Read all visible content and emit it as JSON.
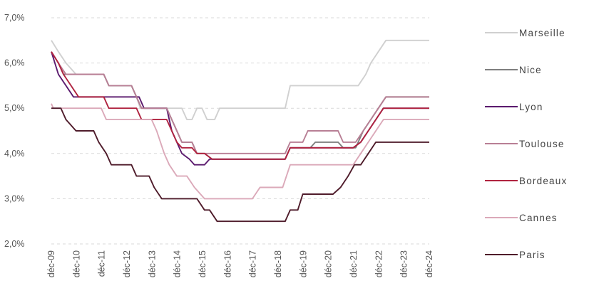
{
  "chart_data": {
    "type": "line",
    "title": "",
    "xlabel": "",
    "ylabel": "",
    "ylim": [
      2.0,
      7.0
    ],
    "y_ticks": [
      "2,0%",
      "3,0%",
      "4,0%",
      "5,0%",
      "6,0%",
      "7,0%"
    ],
    "x_range": [
      2009.92,
      2024.92
    ],
    "x_ticks": [
      "déc-09",
      "déc-10",
      "déc-11",
      "déc-12",
      "déc-13",
      "déc-14",
      "déc-15",
      "déc-16",
      "déc-17",
      "déc-18",
      "déc-19",
      "déc-20",
      "déc-21",
      "déc-22",
      "déc-23",
      "déc-24"
    ],
    "grid": "horizontal dashed",
    "legend_position": "right",
    "series": [
      {
        "name": "Marseille",
        "color": "#d0d0d0",
        "points": [
          [
            2009.92,
            6.5
          ],
          [
            2010.2,
            6.25
          ],
          [
            2010.5,
            6.0
          ],
          [
            2010.9,
            5.75
          ],
          [
            2012.0,
            5.75
          ],
          [
            2012.2,
            5.5
          ],
          [
            2013.1,
            5.5
          ],
          [
            2013.3,
            5.25
          ],
          [
            2013.45,
            5.0
          ],
          [
            2015.1,
            5.0
          ],
          [
            2015.3,
            4.75
          ],
          [
            2015.5,
            4.75
          ],
          [
            2015.7,
            5.0
          ],
          [
            2015.9,
            5.0
          ],
          [
            2016.1,
            4.75
          ],
          [
            2016.4,
            4.75
          ],
          [
            2016.6,
            5.0
          ],
          [
            2019.2,
            5.0
          ],
          [
            2019.4,
            5.5
          ],
          [
            2022.1,
            5.5
          ],
          [
            2022.4,
            5.75
          ],
          [
            2022.6,
            6.0
          ],
          [
            2022.9,
            6.25
          ],
          [
            2023.2,
            6.5
          ],
          [
            2024.92,
            6.5
          ]
        ]
      },
      {
        "name": "Nice",
        "color": "#7f7f7f",
        "points": [
          [
            2009.92,
            6.25
          ],
          [
            2010.2,
            6.0
          ],
          [
            2010.4,
            5.75
          ],
          [
            2010.9,
            5.75
          ],
          [
            2012.0,
            5.75
          ],
          [
            2012.2,
            5.5
          ],
          [
            2013.1,
            5.5
          ],
          [
            2013.3,
            5.25
          ],
          [
            2013.5,
            5.0
          ],
          [
            2014.5,
            5.0
          ],
          [
            2014.7,
            4.75
          ],
          [
            2014.9,
            4.5
          ],
          [
            2015.1,
            4.25
          ],
          [
            2015.5,
            4.25
          ],
          [
            2015.7,
            4.0
          ],
          [
            2016.0,
            4.0
          ],
          [
            2016.3,
            3.875
          ],
          [
            2019.2,
            3.875
          ],
          [
            2019.4,
            4.125
          ],
          [
            2020.2,
            4.125
          ],
          [
            2020.4,
            4.25
          ],
          [
            2021.3,
            4.25
          ],
          [
            2021.5,
            4.125
          ],
          [
            2022.0,
            4.125
          ],
          [
            2022.3,
            4.5
          ],
          [
            2022.6,
            4.75
          ],
          [
            2022.9,
            5.0
          ],
          [
            2023.2,
            5.25
          ],
          [
            2024.92,
            5.25
          ]
        ]
      },
      {
        "name": "Lyon",
        "color": "#5b1a6e",
        "points": [
          [
            2009.92,
            6.25
          ],
          [
            2010.2,
            5.75
          ],
          [
            2010.5,
            5.5
          ],
          [
            2010.8,
            5.25
          ],
          [
            2013.4,
            5.25
          ],
          [
            2013.6,
            5.0
          ],
          [
            2014.5,
            5.0
          ],
          [
            2014.7,
            4.5
          ],
          [
            2014.9,
            4.25
          ],
          [
            2015.1,
            4.0
          ],
          [
            2015.4,
            3.875
          ],
          [
            2015.6,
            3.75
          ],
          [
            2016.0,
            3.75
          ],
          [
            2016.2,
            3.875
          ],
          [
            2019.2,
            3.875
          ],
          [
            2019.4,
            4.125
          ],
          [
            2021.9,
            4.125
          ],
          [
            2022.2,
            4.25
          ],
          [
            2022.5,
            4.5
          ],
          [
            2022.8,
            4.75
          ],
          [
            2023.1,
            5.0
          ],
          [
            2024.92,
            5.0
          ]
        ]
      },
      {
        "name": "Toulouse",
        "color": "#b87f95",
        "points": [
          [
            2009.92,
            6.25
          ],
          [
            2010.2,
            6.0
          ],
          [
            2010.5,
            5.75
          ],
          [
            2010.9,
            5.75
          ],
          [
            2012.0,
            5.75
          ],
          [
            2012.2,
            5.5
          ],
          [
            2013.1,
            5.5
          ],
          [
            2013.3,
            5.25
          ],
          [
            2013.5,
            5.0
          ],
          [
            2014.5,
            5.0
          ],
          [
            2014.7,
            4.75
          ],
          [
            2014.9,
            4.5
          ],
          [
            2015.1,
            4.25
          ],
          [
            2015.5,
            4.25
          ],
          [
            2015.7,
            4.0
          ],
          [
            2016.0,
            4.0
          ],
          [
            2016.3,
            4.0
          ],
          [
            2019.2,
            4.0
          ],
          [
            2019.4,
            4.25
          ],
          [
            2019.9,
            4.25
          ],
          [
            2020.1,
            4.5
          ],
          [
            2021.3,
            4.5
          ],
          [
            2021.5,
            4.25
          ],
          [
            2022.0,
            4.25
          ],
          [
            2022.3,
            4.5
          ],
          [
            2022.6,
            4.75
          ],
          [
            2022.9,
            5.0
          ],
          [
            2023.2,
            5.25
          ],
          [
            2024.92,
            5.25
          ]
        ]
      },
      {
        "name": "Bordeaux",
        "color": "#b0233f",
        "points": [
          [
            2009.92,
            6.25
          ],
          [
            2010.2,
            6.0
          ],
          [
            2010.4,
            5.75
          ],
          [
            2010.7,
            5.5
          ],
          [
            2011.0,
            5.25
          ],
          [
            2012.0,
            5.25
          ],
          [
            2012.2,
            5.0
          ],
          [
            2013.3,
            5.0
          ],
          [
            2013.5,
            4.75
          ],
          [
            2014.5,
            4.75
          ],
          [
            2014.7,
            4.5
          ],
          [
            2014.9,
            4.25
          ],
          [
            2015.1,
            4.125
          ],
          [
            2015.5,
            4.125
          ],
          [
            2015.7,
            4.0
          ],
          [
            2016.0,
            4.0
          ],
          [
            2016.3,
            3.875
          ],
          [
            2019.2,
            3.875
          ],
          [
            2019.4,
            4.125
          ],
          [
            2021.9,
            4.125
          ],
          [
            2022.2,
            4.25
          ],
          [
            2022.5,
            4.5
          ],
          [
            2022.8,
            4.75
          ],
          [
            2023.1,
            5.0
          ],
          [
            2024.92,
            5.0
          ]
        ]
      },
      {
        "name": "Cannes",
        "color": "#dba9b9",
        "points": [
          [
            2009.92,
            5.1
          ],
          [
            2010.0,
            5.0
          ],
          [
            2011.9,
            5.0
          ],
          [
            2012.1,
            4.75
          ],
          [
            2013.9,
            4.75
          ],
          [
            2014.1,
            4.5
          ],
          [
            2014.4,
            4.0
          ],
          [
            2014.6,
            3.75
          ],
          [
            2014.9,
            3.5
          ],
          [
            2015.3,
            3.5
          ],
          [
            2015.6,
            3.25
          ],
          [
            2016.0,
            3.0
          ],
          [
            2017.9,
            3.0
          ],
          [
            2018.2,
            3.25
          ],
          [
            2019.1,
            3.25
          ],
          [
            2019.4,
            3.75
          ],
          [
            2021.9,
            3.75
          ],
          [
            2022.2,
            4.0
          ],
          [
            2022.5,
            4.25
          ],
          [
            2022.8,
            4.5
          ],
          [
            2023.1,
            4.75
          ],
          [
            2024.92,
            4.75
          ]
        ]
      },
      {
        "name": "Paris",
        "color": "#4f1c2b",
        "points": [
          [
            2009.92,
            5.0
          ],
          [
            2010.3,
            5.0
          ],
          [
            2010.5,
            4.75
          ],
          [
            2010.9,
            4.5
          ],
          [
            2011.6,
            4.5
          ],
          [
            2011.8,
            4.25
          ],
          [
            2012.1,
            4.0
          ],
          [
            2012.3,
            3.75
          ],
          [
            2013.1,
            3.75
          ],
          [
            2013.3,
            3.5
          ],
          [
            2013.8,
            3.5
          ],
          [
            2014.0,
            3.25
          ],
          [
            2014.3,
            3.0
          ],
          [
            2015.7,
            3.0
          ],
          [
            2016.0,
            2.75
          ],
          [
            2016.2,
            2.75
          ],
          [
            2016.5,
            2.5
          ],
          [
            2019.2,
            2.5
          ],
          [
            2019.4,
            2.75
          ],
          [
            2019.7,
            2.75
          ],
          [
            2019.9,
            3.1
          ],
          [
            2021.1,
            3.1
          ],
          [
            2021.4,
            3.25
          ],
          [
            2021.7,
            3.5
          ],
          [
            2021.95,
            3.75
          ],
          [
            2022.2,
            3.75
          ],
          [
            2022.5,
            4.0
          ],
          [
            2022.8,
            4.25
          ],
          [
            2024.92,
            4.25
          ]
        ]
      }
    ]
  }
}
